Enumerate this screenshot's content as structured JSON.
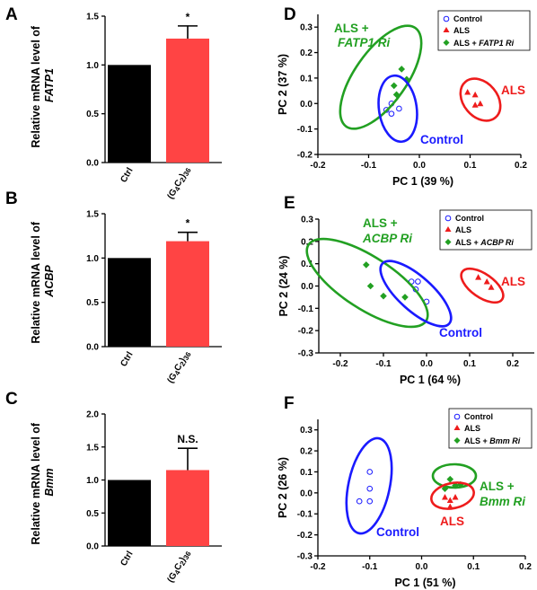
{
  "panels": {
    "A": {
      "letter": "A",
      "ylabel1": "Relative mRNA level of",
      "ylabel2": "FATP1"
    },
    "B": {
      "letter": "B",
      "ylabel1": "Relative mRNA level of",
      "ylabel2": "ACBP"
    },
    "C": {
      "letter": "C",
      "ylabel1": "Relative mRNA level of",
      "ylabel2": "Bmm"
    },
    "D": {
      "letter": "D",
      "legend": [
        "Control",
        "ALS",
        "ALS + "
      ],
      "legend_italic": [
        "",
        "",
        "FATP1 Ri"
      ]
    },
    "E": {
      "letter": "E",
      "legend": [
        "Control",
        "ALS",
        "ALS + "
      ],
      "legend_italic": [
        "",
        "",
        "ACBP Ri"
      ]
    },
    "F": {
      "letter": "F",
      "legend": [
        "Control",
        "ALS",
        "ALS + "
      ],
      "legend_italic": [
        "",
        "",
        "Bmm Ri"
      ]
    }
  },
  "colors": {
    "ctrl_bar": "#000000",
    "als_bar": "#ff4444",
    "control": "#1a1aff",
    "als": "#ee1c1c",
    "rnai": "#22a022"
  },
  "chart_data": [
    {
      "id": "A",
      "type": "bar",
      "categories": [
        "Ctrl",
        "(G4C2)36"
      ],
      "values": [
        1.0,
        1.27
      ],
      "errors": [
        0,
        0.13
      ],
      "significance": [
        "",
        "*"
      ],
      "ylabel": "Relative mRNA level of FATP1",
      "ylim": [
        0,
        1.5
      ],
      "yticks": [
        "0.0",
        "0.5",
        "1.0",
        "1.5"
      ]
    },
    {
      "id": "B",
      "type": "bar",
      "categories": [
        "Ctrl",
        "(G4C2)36"
      ],
      "values": [
        1.0,
        1.19
      ],
      "errors": [
        0,
        0.1
      ],
      "significance": [
        "",
        "*"
      ],
      "ylabel": "Relative mRNA level of ACBP",
      "ylim": [
        0,
        1.5
      ],
      "yticks": [
        "0.0",
        "0.5",
        "1.0",
        "1.5"
      ]
    },
    {
      "id": "C",
      "type": "bar",
      "categories": [
        "Ctrl",
        "(G4C2)36"
      ],
      "values": [
        1.0,
        1.15
      ],
      "errors": [
        0,
        0.33
      ],
      "significance": [
        "",
        "N.S."
      ],
      "ylabel": "Relative mRNA level of Bmm",
      "ylim": [
        0,
        2.0
      ],
      "yticks": [
        "0.0",
        "0.5",
        "1.0",
        "1.5",
        "2.0"
      ]
    },
    {
      "id": "D",
      "type": "scatter",
      "xlabel": "PC 1 (39 %)",
      "ylabel": "PC 2 (37 %)",
      "xlim": [
        -0.2,
        0.2
      ],
      "ylim": [
        -0.2,
        0.35
      ],
      "xticks": [
        "-0.2",
        "-0.1",
        "0.0",
        "0.1",
        "0.2"
      ],
      "yticks": [
        "-0.2",
        "-0.1",
        "0.0",
        "0.1",
        "0.2",
        "0.3"
      ],
      "legend_position": "top-right",
      "series": [
        {
          "name": "Control",
          "marker": "open-circle",
          "points": [
            [
              -0.065,
              -0.025
            ],
            [
              -0.04,
              -0.02
            ],
            [
              -0.055,
              0.0
            ],
            [
              -0.055,
              -0.04
            ]
          ]
        },
        {
          "name": "ALS",
          "marker": "triangle",
          "points": [
            [
              0.095,
              0.045
            ],
            [
              0.11,
              0.035
            ],
            [
              0.11,
              -0.005
            ],
            [
              0.12,
              0.0
            ]
          ]
        },
        {
          "name": "ALS + FATP1 Ri",
          "marker": "diamond",
          "points": [
            [
              -0.05,
              0.07
            ],
            [
              -0.045,
              0.035
            ],
            [
              -0.035,
              0.135
            ],
            [
              -0.025,
              0.095
            ]
          ]
        }
      ],
      "clusters": [
        {
          "label": "ALS +",
          "label2": "FATP1 Ri",
          "color": "rnai"
        },
        {
          "label": "ALS",
          "color": "als"
        },
        {
          "label": "Control",
          "color": "control"
        }
      ]
    },
    {
      "id": "E",
      "type": "scatter",
      "xlabel": "PC 1 (64 %)",
      "ylabel": "PC 2 (24 %)",
      "xlim": [
        -0.25,
        0.25
      ],
      "ylim": [
        -0.3,
        0.3
      ],
      "xticks": [
        "-0.2",
        "-0.1",
        "0.0",
        "0.1",
        "0.2"
      ],
      "yticks": [
        "-0.3",
        "-0.2",
        "-0.1",
        "0.0",
        "0.1",
        "0.2",
        "0.3"
      ],
      "legend_position": "top-right",
      "series": [
        {
          "name": "Control",
          "marker": "open-circle",
          "points": [
            [
              -0.02,
              0.02
            ],
            [
              -0.035,
              0.02
            ],
            [
              -0.025,
              -0.015
            ],
            [
              0.0,
              -0.07
            ]
          ]
        },
        {
          "name": "ALS",
          "marker": "triangle",
          "points": [
            [
              0.12,
              0.04
            ],
            [
              0.14,
              0.02
            ],
            [
              0.15,
              -0.005
            ]
          ]
        },
        {
          "name": "ALS + ACBP Ri",
          "marker": "diamond",
          "points": [
            [
              -0.14,
              0.095
            ],
            [
              -0.13,
              0.0
            ],
            [
              -0.1,
              -0.045
            ],
            [
              -0.05,
              -0.05
            ]
          ]
        }
      ],
      "clusters": [
        {
          "label": "ALS +",
          "label2": "ACBP Ri",
          "color": "rnai"
        },
        {
          "label": "ALS",
          "color": "als"
        },
        {
          "label": "Control",
          "color": "control"
        }
      ]
    },
    {
      "id": "F",
      "type": "scatter",
      "xlabel": "PC 1 (51 %)",
      "ylabel": "PC 2 (26 %)",
      "xlim": [
        -0.2,
        0.2
      ],
      "ylim": [
        -0.3,
        0.35
      ],
      "xticks": [
        "-0.2",
        "-0.1",
        "0.0",
        "0.1",
        "0.2"
      ],
      "yticks": [
        "-0.3",
        "-0.2",
        "-0.1",
        "0.0",
        "0.1",
        "0.2",
        "0.3"
      ],
      "legend_position": "top-right",
      "series": [
        {
          "name": "Control",
          "marker": "open-circle",
          "points": [
            [
              -0.1,
              0.1
            ],
            [
              -0.1,
              0.02
            ],
            [
              -0.12,
              -0.04
            ],
            [
              -0.1,
              -0.04
            ]
          ]
        },
        {
          "name": "ALS",
          "marker": "triangle",
          "points": [
            [
              0.045,
              -0.02
            ],
            [
              0.055,
              -0.035
            ],
            [
              0.065,
              -0.02
            ],
            [
              0.055,
              -0.065
            ]
          ]
        },
        {
          "name": "ALS + Bmm Ri",
          "marker": "diamond",
          "points": [
            [
              0.045,
              0.02
            ],
            [
              0.055,
              0.065
            ],
            [
              0.065,
              0.035
            ],
            [
              0.075,
              0.04
            ]
          ]
        }
      ],
      "clusters": [
        {
          "label": "ALS +",
          "label2": "Bmm Ri",
          "color": "rnai"
        },
        {
          "label": "ALS",
          "color": "als"
        },
        {
          "label": "Control",
          "color": "control"
        }
      ]
    }
  ]
}
